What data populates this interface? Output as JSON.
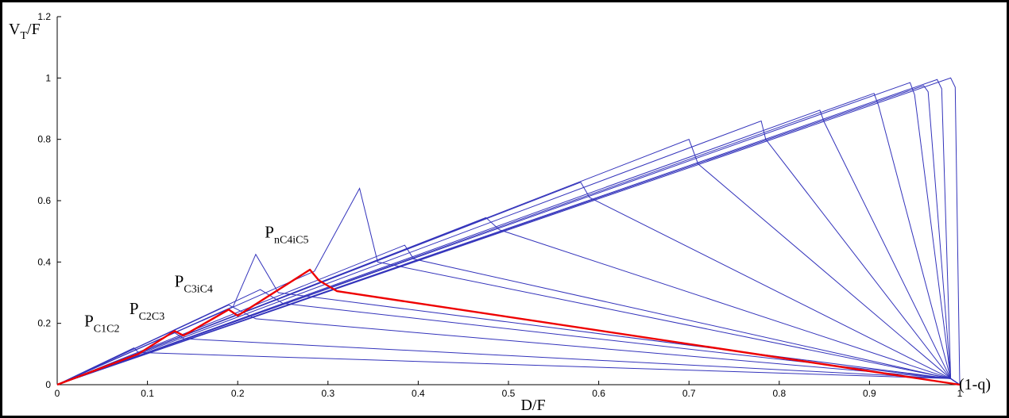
{
  "chart_data": {
    "type": "line",
    "title": "",
    "xlabel": "D/F",
    "ylabel": {
      "main": "V",
      "sub": "T",
      "rest": "/F"
    },
    "xlim": [
      0,
      1
    ],
    "ylim": [
      0,
      1.2
    ],
    "xticks": [
      0,
      0.1,
      0.2,
      0.3,
      0.4,
      0.5,
      0.6,
      0.7,
      0.8,
      0.9,
      1
    ],
    "yticks": [
      0,
      0.2,
      0.4,
      0.6,
      0.8,
      1,
      1.2
    ],
    "grid": false,
    "colors": {
      "family": "#3333bb",
      "highlight": "#ee0000"
    },
    "endpoint_label": "(1-q)",
    "annotations": [
      {
        "main": "P",
        "sub": "C1C2",
        "x": 0.03,
        "y": 0.19
      },
      {
        "main": "P",
        "sub": "C2C3",
        "x": 0.08,
        "y": 0.23
      },
      {
        "main": "P",
        "sub": "C3iC4",
        "x": 0.13,
        "y": 0.32
      },
      {
        "main": "P",
        "sub": "nC4iC5",
        "x": 0.23,
        "y": 0.48
      }
    ],
    "series": [
      {
        "x": [
          0,
          0.085,
          0.09,
          0.99,
          1.0
        ],
        "y": [
          0,
          0.12,
          0.105,
          0.02,
          0
        ]
      },
      {
        "x": [
          0,
          0.13,
          0.14,
          0.99,
          1.0
        ],
        "y": [
          0,
          0.17,
          0.15,
          0.02,
          0
        ]
      },
      {
        "x": [
          0,
          0.19,
          0.22,
          0.99,
          1.0
        ],
        "y": [
          0,
          0.26,
          0.215,
          0.02,
          0
        ]
      },
      {
        "x": [
          0,
          0.195,
          0.22,
          0.245,
          0.99,
          1.0
        ],
        "y": [
          0,
          0.255,
          0.425,
          0.3,
          0.02,
          0
        ]
      },
      {
        "x": [
          0,
          0.225,
          0.25,
          0.99,
          1.0
        ],
        "y": [
          0,
          0.31,
          0.265,
          0.02,
          0
        ]
      },
      {
        "x": [
          0,
          0.285,
          0.335,
          0.355,
          0.99,
          1.0
        ],
        "y": [
          0,
          0.37,
          0.64,
          0.4,
          0.02,
          0
        ]
      },
      {
        "x": [
          0,
          0.385,
          0.395,
          0.99,
          1.0
        ],
        "y": [
          0,
          0.455,
          0.41,
          0.02,
          0
        ]
      },
      {
        "x": [
          0,
          0.475,
          0.49,
          0.99,
          1.0
        ],
        "y": [
          0,
          0.545,
          0.505,
          0.02,
          0
        ]
      },
      {
        "x": [
          0,
          0.58,
          0.59,
          0.99,
          1.0
        ],
        "y": [
          0,
          0.66,
          0.61,
          0.02,
          0
        ]
      },
      {
        "x": [
          0,
          0.7,
          0.71,
          0.99,
          1.0
        ],
        "y": [
          0,
          0.8,
          0.72,
          0.02,
          0
        ]
      },
      {
        "x": [
          0,
          0.78,
          0.785,
          0.99,
          1.0
        ],
        "y": [
          0,
          0.86,
          0.8,
          0.02,
          0
        ]
      },
      {
        "x": [
          0,
          0.845,
          0.85,
          0.99,
          1.0
        ],
        "y": [
          0,
          0.895,
          0.855,
          0.02,
          0
        ]
      },
      {
        "x": [
          0,
          0.905,
          0.91,
          0.99,
          1.0
        ],
        "y": [
          0,
          0.95,
          0.91,
          0.02,
          0
        ]
      },
      {
        "x": [
          0,
          0.945,
          0.95,
          0.99,
          1.0
        ],
        "y": [
          0,
          0.985,
          0.945,
          0.02,
          0
        ]
      },
      {
        "x": [
          0,
          0.96,
          0.965,
          0.99,
          1.0
        ],
        "y": [
          0,
          0.975,
          0.955,
          0.02,
          0
        ]
      },
      {
        "x": [
          0,
          0.975,
          0.98,
          0.99,
          1.0
        ],
        "y": [
          0,
          0.995,
          0.965,
          0.02,
          0
        ]
      },
      {
        "x": [
          0,
          0.99,
          0.995,
          1.0
        ],
        "y": [
          0,
          1.0,
          0.97,
          0
        ]
      }
    ],
    "highlight_series": {
      "x": [
        0,
        0.09,
        0.13,
        0.14,
        0.19,
        0.2,
        0.28,
        0.29,
        0.31,
        1.0
      ],
      "y": [
        0,
        0.1,
        0.175,
        0.16,
        0.245,
        0.225,
        0.375,
        0.34,
        0.305,
        0
      ]
    }
  }
}
